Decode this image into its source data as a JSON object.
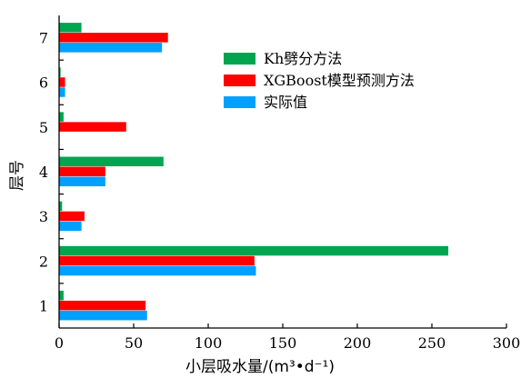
{
  "chart_data": {
    "type": "bar",
    "orientation": "horizontal",
    "categories": [
      "1",
      "2",
      "3",
      "4",
      "5",
      "6",
      "7"
    ],
    "series": [
      {
        "name": "Kh劈分方法",
        "color": "#00a550",
        "values": [
          3,
          261,
          2,
          70,
          3,
          1,
          15
        ]
      },
      {
        "name": "XGBoost模型预测方法",
        "color": "#ff0000",
        "values": [
          58,
          131,
          17,
          31,
          45,
          4,
          73
        ]
      },
      {
        "name": "实际值",
        "color": "#00a0ff",
        "values": [
          59,
          132,
          15,
          31,
          0,
          4,
          69
        ]
      }
    ],
    "xlabel": "小层吸水量/(m³•d⁻¹)",
    "ylabel": "层号",
    "xlim": [
      0,
      300
    ],
    "xticks": [
      "0",
      "50",
      "100",
      "150",
      "200",
      "250",
      "300"
    ],
    "grid": false,
    "legend_position": "top-right"
  }
}
